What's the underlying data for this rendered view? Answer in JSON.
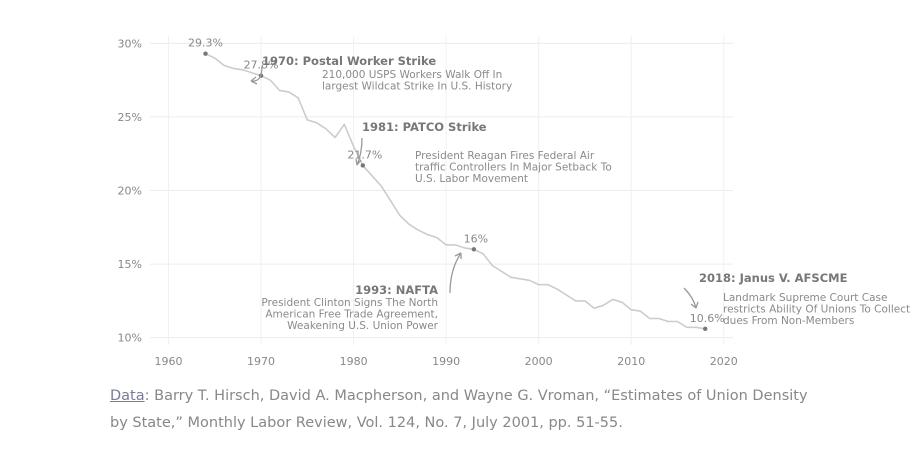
{
  "chart_data": {
    "type": "line",
    "title": "",
    "xlabel": "",
    "ylabel": "",
    "xlim": [
      1958,
      2021
    ],
    "ylim": [
      9.5,
      30.5
    ],
    "x_ticks": [
      1960,
      1970,
      1980,
      1990,
      2000,
      2010,
      2020
    ],
    "y_ticks": [
      10,
      15,
      20,
      25,
      30
    ],
    "x_tick_labels": [
      "1960",
      "1970",
      "1980",
      "1990",
      "2000",
      "2010",
      "2020"
    ],
    "y_tick_labels": [
      "10%",
      "15%",
      "20%",
      "25%",
      "30%"
    ],
    "grid": true,
    "line_color": "#cccccc",
    "series": [
      {
        "x": [
          1964,
          1965,
          1966,
          1967,
          1968,
          1969,
          1970,
          1971,
          1972,
          1973,
          1974,
          1975,
          1976,
          1977,
          1978,
          1979,
          1980,
          1981,
          1982,
          1983,
          1984,
          1985,
          1986,
          1987,
          1988,
          1989,
          1990,
          1991,
          1992,
          1993,
          1994,
          1995,
          1996,
          1997,
          1998,
          1999,
          2000,
          2001,
          2002,
          2003,
          2004,
          2005,
          2006,
          2007,
          2008,
          2009,
          2010,
          2011,
          2012,
          2013,
          2014,
          2015,
          2016,
          2017,
          2018
        ],
        "y": [
          29.3,
          29.0,
          28.5,
          28.3,
          28.2,
          28.0,
          27.8,
          27.5,
          26.8,
          26.7,
          26.3,
          24.8,
          24.6,
          24.2,
          23.6,
          24.5,
          23.0,
          21.7,
          21.0,
          20.3,
          19.3,
          18.3,
          17.7,
          17.3,
          17.0,
          16.8,
          16.3,
          16.3,
          16.1,
          16.0,
          15.7,
          14.9,
          14.5,
          14.1,
          14.0,
          13.9,
          13.6,
          13.6,
          13.3,
          12.9,
          12.5,
          12.5,
          12.0,
          12.2,
          12.6,
          12.4,
          11.9,
          11.8,
          11.3,
          11.3,
          11.1,
          11.1,
          10.7,
          10.7,
          10.6
        ]
      }
    ],
    "point_labels": [
      {
        "x": 1964,
        "y": 29.3,
        "label": "29.3%"
      },
      {
        "x": 1970,
        "y": 27.8,
        "label": "27.8%"
      },
      {
        "x": 1981,
        "y": 21.7,
        "label": "21.7%"
      },
      {
        "x": 1993,
        "y": 16.0,
        "label": "16%"
      },
      {
        "x": 2018,
        "y": 10.6,
        "label": "10.6%"
      }
    ],
    "annotations": [
      {
        "title": "1970: Postal Worker Strike",
        "lines": [
          "210,000 USPS Workers Walk Off In",
          "largest Wildcat Strike In U.S. History"
        ]
      },
      {
        "title": "1981: PATCO Strike",
        "lines": [
          "President Reagan Fires Federal Air",
          "traffic Controllers In Major Setback To",
          "U.S. Labor Movement"
        ]
      },
      {
        "title": "1993: NAFTA",
        "lines": [
          "President Clinton Signs The North",
          "American Free Trade Agreement,",
          "Weakening U.S. Union Power"
        ]
      },
      {
        "title": "2018: Janus V. AFSCME",
        "lines": [
          "Landmark Supreme Court Case",
          "restricts Ability Of Unions To Collect",
          "dues From Non-Members"
        ]
      }
    ]
  },
  "footer": {
    "link_text": "Data",
    "text": ": Barry T. Hirsch, David A. Macpherson, and Wayne G. Vroman, “Estimates of Union Density by State,” Monthly Labor Review, Vol. 124, No. 7, July 2001, pp. 51-55."
  }
}
